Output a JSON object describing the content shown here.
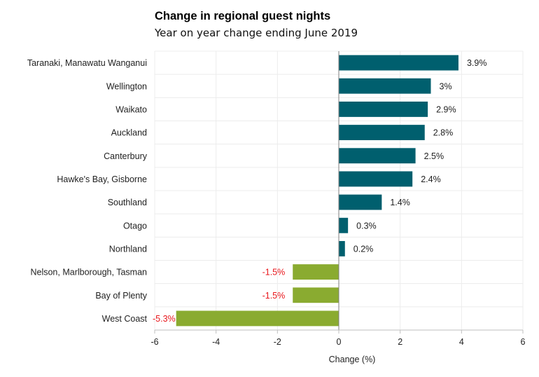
{
  "chart_data": {
    "type": "bar",
    "orientation": "horizontal",
    "title": "Change in regional guest nights",
    "subtitle": "Year on year change ending June 2019",
    "xlabel": "Change  (%)",
    "ylabel": "",
    "xlim": [
      -6,
      6
    ],
    "xticks": [
      -6,
      -4,
      -2,
      0,
      2,
      4,
      6
    ],
    "grid": true,
    "legend": "none",
    "categories": [
      "Taranaki, Manawatu Wanganui",
      "Wellington",
      "Waikato",
      "Auckland",
      "Canterbury",
      "Hawke's Bay, Gisborne",
      "Southland",
      "Otago",
      "Northland",
      "Nelson, Marlborough, Tasman",
      "Bay of Plenty",
      "West Coast"
    ],
    "values": [
      3.9,
      3.0,
      2.9,
      2.8,
      2.5,
      2.4,
      1.4,
      0.3,
      0.2,
      -1.5,
      -1.5,
      -5.3
    ],
    "data_labels": [
      "3.9%",
      "3%",
      "2.9%",
      "2.8%",
      "2.5%",
      "2.4%",
      "1.4%",
      "0.3%",
      "0.2%",
      "-1.5%",
      "-1.5%",
      "-5.3%"
    ],
    "colors": {
      "positive_bar": "#005f6e",
      "negative_bar": "#8aab30",
      "positive_label": "#222222",
      "negative_label": "#e8161b"
    }
  }
}
